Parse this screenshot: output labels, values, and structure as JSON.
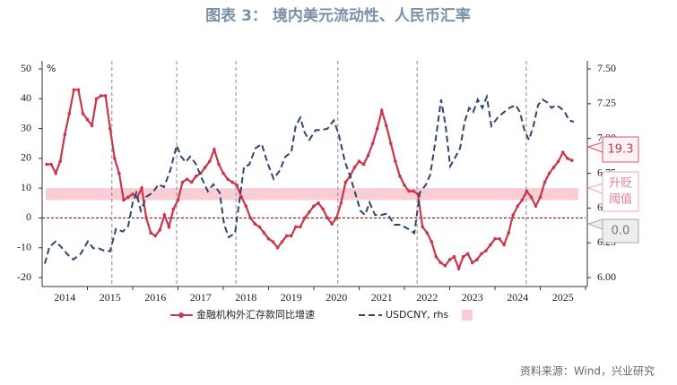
{
  "chart_data": {
    "type": "line",
    "title": "图表 3：  境内美元流动性、人民币汇率",
    "y_unit": "%",
    "source": "资料来源：Wind，兴业研究",
    "xlim": [
      2014,
      2026
    ],
    "xticks": [
      {
        "value": 2014.5,
        "label": "2014"
      },
      {
        "value": 2015.5,
        "label": "2015"
      },
      {
        "value": 2016.5,
        "label": "2016"
      },
      {
        "value": 2017.5,
        "label": "2017"
      },
      {
        "value": 2018.5,
        "label": "2018"
      },
      {
        "value": 2019.5,
        "label": "2019"
      },
      {
        "value": 2020.5,
        "label": "2020"
      },
      {
        "value": 2021.5,
        "label": "2021"
      },
      {
        "value": 2022.5,
        "label": "2022"
      },
      {
        "value": 2023.5,
        "label": "2023"
      },
      {
        "value": 2024.5,
        "label": "2024"
      },
      {
        "value": 2025.5,
        "label": "2025"
      }
    ],
    "ylim": [
      -20,
      50
    ],
    "yticks": [
      -20,
      -10,
      0,
      10,
      20,
      30,
      40,
      50
    ],
    "y2lim": [
      6,
      7.5
    ],
    "y2ticks": [
      {
        "value": 6,
        "label": "6.00"
      },
      {
        "value": 6.25,
        "label": "6.25"
      },
      {
        "value": 6.5,
        "label": "6.50"
      },
      {
        "value": 6.75,
        "label": "6.75"
      },
      {
        "value": 7,
        "label": "7.00"
      },
      {
        "value": 7.25,
        "label": "7.25"
      },
      {
        "value": 7.5,
        "label": "7.50"
      }
    ],
    "vlines": [
      2015.54,
      2016.97,
      2018.28,
      2020.53,
      2022.28,
      2024.69
    ],
    "zero_line": 0,
    "band": {
      "from": 6,
      "to": 10,
      "color": "#f9cdd6"
    },
    "series": [
      {
        "name": "金融机构外汇存款同比增速",
        "color": "#c8374a",
        "x": [
          2014.1,
          2014.2,
          2014.3,
          2014.4,
          2014.5,
          2014.6,
          2014.7,
          2014.8,
          2014.9,
          2015.0,
          2015.1,
          2015.2,
          2015.3,
          2015.4,
          2015.5,
          2015.6,
          2015.7,
          2015.8,
          2015.9,
          2016.0,
          2016.1,
          2016.2,
          2016.3,
          2016.4,
          2016.5,
          2016.6,
          2016.7,
          2016.8,
          2016.9,
          2017.0,
          2017.1,
          2017.2,
          2017.3,
          2017.4,
          2017.5,
          2017.6,
          2017.7,
          2017.8,
          2017.9,
          2018.0,
          2018.1,
          2018.2,
          2018.3,
          2018.4,
          2018.5,
          2018.6,
          2018.7,
          2018.8,
          2018.9,
          2019.0,
          2019.1,
          2019.2,
          2019.3,
          2019.4,
          2019.5,
          2019.6,
          2019.7,
          2019.8,
          2019.9,
          2020.0,
          2020.1,
          2020.2,
          2020.3,
          2020.4,
          2020.5,
          2020.6,
          2020.7,
          2020.8,
          2020.9,
          2021.0,
          2021.1,
          2021.2,
          2021.3,
          2021.4,
          2021.5,
          2021.6,
          2021.7,
          2021.8,
          2021.9,
          2022.0,
          2022.1,
          2022.2,
          2022.3,
          2022.4,
          2022.5,
          2022.6,
          2022.7,
          2022.8,
          2022.9,
          2023.0,
          2023.1,
          2023.2,
          2023.3,
          2023.4,
          2023.5,
          2023.6,
          2023.7,
          2023.8,
          2023.9,
          2024.0,
          2024.1,
          2024.2,
          2024.3,
          2024.4,
          2024.5,
          2024.6,
          2024.7,
          2024.8,
          2024.9,
          2025.0,
          2025.1,
          2025.2,
          2025.3,
          2025.4,
          2025.5,
          2025.6,
          2025.7
        ],
        "values": [
          18,
          18,
          15,
          19,
          28,
          35,
          43,
          43,
          35,
          33,
          31,
          40,
          41,
          41,
          30,
          20,
          15,
          6,
          7,
          8,
          7,
          10,
          0,
          -5,
          -6,
          -4,
          1,
          -3,
          3,
          6,
          12,
          13,
          12,
          14,
          15,
          17,
          19,
          23,
          18,
          15,
          13,
          12,
          11,
          7,
          4,
          0,
          -2,
          -3,
          -5,
          -7,
          -8,
          -10,
          -8,
          -6,
          -6,
          -3,
          -3,
          0,
          2,
          4,
          5,
          3,
          0,
          -2,
          0,
          5,
          12,
          14,
          17,
          19,
          18,
          21,
          25,
          30,
          36,
          31,
          25,
          19,
          14,
          11,
          9,
          9,
          8,
          -3,
          -5,
          -8,
          -13,
          -15,
          -16,
          -14,
          -13,
          -17,
          -13,
          -12,
          -15,
          -14,
          -12,
          -11,
          -9,
          -7,
          -7,
          -9,
          -5,
          1,
          4,
          6,
          9,
          7,
          4,
          7,
          12,
          15,
          17,
          19,
          22,
          20,
          19.3
        ]
      },
      {
        "name": "USDCNY, rhs",
        "color": "#2f4570",
        "axis": "y2",
        "dashed": true,
        "x": [
          2014.06,
          2014.16,
          2014.3,
          2014.42,
          2014.55,
          2014.69,
          2014.85,
          2015.01,
          2015.13,
          2015.25,
          2015.39,
          2015.5,
          2015.63,
          2015.78,
          2015.9,
          2016.0,
          2016.08,
          2016.18,
          2016.3,
          2016.44,
          2016.57,
          2016.69,
          2016.83,
          2016.97,
          2017.07,
          2017.17,
          2017.27,
          2017.39,
          2017.53,
          2017.66,
          2017.78,
          2017.92,
          2018.02,
          2018.12,
          2018.26,
          2018.38,
          2018.46,
          2018.57,
          2018.71,
          2018.85,
          2018.97,
          2019.11,
          2019.25,
          2019.37,
          2019.5,
          2019.6,
          2019.7,
          2019.8,
          2019.9,
          2020.04,
          2020.16,
          2020.3,
          2020.44,
          2020.55,
          2020.69,
          2020.79,
          2020.91,
          2021.03,
          2021.13,
          2021.23,
          2021.35,
          2021.49,
          2021.62,
          2021.78,
          2021.92,
          2022.08,
          2022.22,
          2022.34,
          2022.48,
          2022.57,
          2022.69,
          2022.81,
          2022.91,
          2023.01,
          2023.13,
          2023.23,
          2023.33,
          2023.43,
          2023.52,
          2023.62,
          2023.72,
          2023.82,
          2023.92,
          2024.06,
          2024.2,
          2024.32,
          2024.46,
          2024.55,
          2024.65,
          2024.75,
          2024.85,
          2024.95,
          2025.05,
          2025.15,
          2025.25,
          2025.35,
          2025.45,
          2025.54,
          2025.64,
          2025.74
        ],
        "values": [
          6.1,
          6.22,
          6.26,
          6.22,
          6.17,
          6.13,
          6.17,
          6.26,
          6.21,
          6.21,
          6.19,
          6.19,
          6.35,
          6.33,
          6.37,
          6.54,
          6.61,
          6.48,
          6.58,
          6.61,
          6.67,
          6.65,
          6.77,
          6.95,
          6.87,
          6.83,
          6.87,
          6.82,
          6.71,
          6.62,
          6.67,
          6.61,
          6.38,
          6.29,
          6.32,
          6.61,
          6.8,
          6.81,
          6.93,
          6.96,
          6.83,
          6.71,
          6.77,
          6.87,
          6.9,
          7.09,
          7.15,
          7.04,
          6.99,
          7.06,
          7.06,
          7.07,
          7.13,
          7.03,
          6.83,
          6.74,
          6.61,
          6.48,
          6.45,
          6.54,
          6.45,
          6.45,
          6.46,
          6.38,
          6.38,
          6.35,
          6.32,
          6.61,
          6.67,
          6.74,
          6.99,
          7.28,
          7.09,
          6.8,
          6.87,
          6.93,
          7.12,
          7.22,
          7.19,
          7.28,
          7.22,
          7.3,
          7.09,
          7.15,
          7.19,
          7.22,
          7.24,
          7.19,
          7.06,
          6.99,
          7.09,
          7.24,
          7.28,
          7.26,
          7.22,
          7.24,
          7.22,
          7.19,
          7.13,
          7.12
        ]
      }
    ],
    "callouts": [
      [
        "19.3"
      ],
      [
        "升贬",
        "阈值"
      ],
      [
        "0.0"
      ]
    ]
  }
}
